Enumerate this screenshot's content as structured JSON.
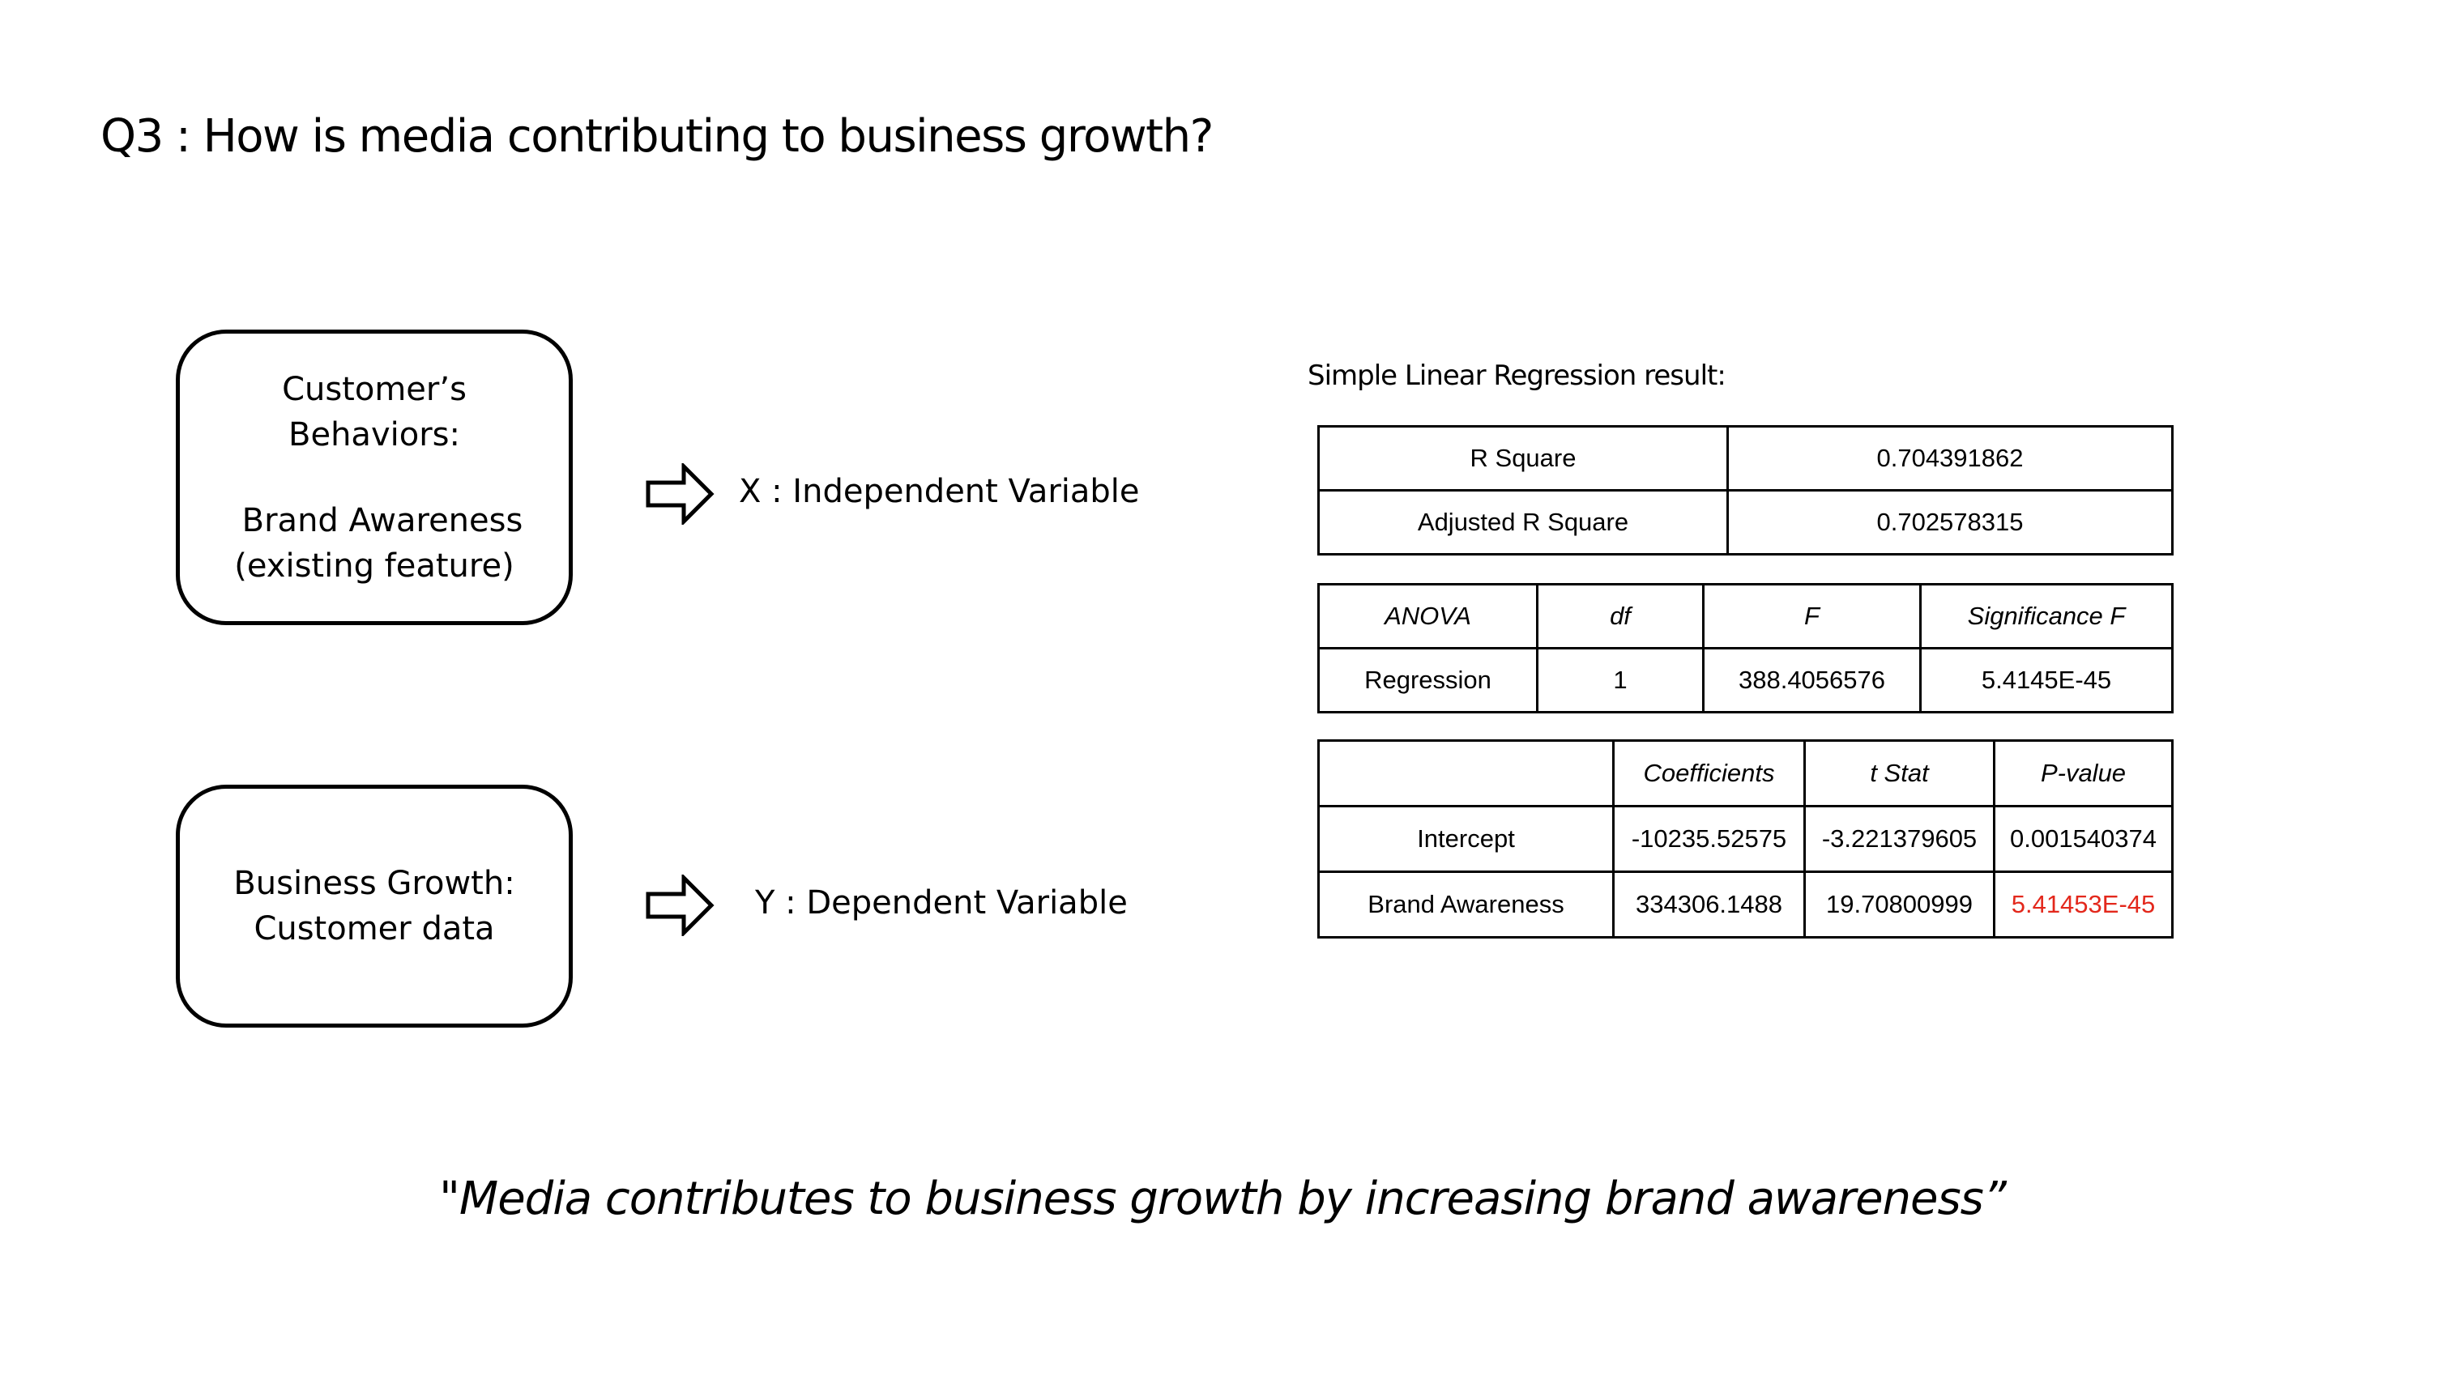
{
  "title": "Q3 : How is media contributing to business growth?",
  "boxes": {
    "x": {
      "line1": "Customer’s",
      "line2": "Behaviors:",
      "line3": "Brand Awareness",
      "line4": "(existing feature)"
    },
    "y": {
      "line1": "Business Growth:",
      "line2": "Customer data"
    }
  },
  "labels": {
    "x": "X : Independent Variable",
    "y": "Y : Dependent Variable"
  },
  "regression": {
    "title": "Simple Linear Regression result:",
    "summary": {
      "rows": [
        {
          "label": "R Square",
          "value": "0.704391862"
        },
        {
          "label": "Adjusted R Square",
          "value": "0.702578315"
        }
      ]
    },
    "anova": {
      "headers": [
        "ANOVA",
        "df",
        "F",
        "Significance F"
      ],
      "row": [
        "Regression",
        "1",
        "388.4056576",
        "5.4145E-45"
      ]
    },
    "coefficients": {
      "headers": [
        "",
        "Coefficients",
        "t Stat",
        "P-value"
      ],
      "rows": [
        [
          "Intercept",
          "-10235.52575",
          "-3.221379605",
          "0.001540374"
        ],
        [
          "Brand Awareness",
          "334306.1488",
          "19.70800999",
          "5.41453E-45"
        ]
      ],
      "highlight_color": "#e3281c"
    }
  },
  "conclusion": "\"Media contributes to business growth by increasing brand awareness”"
}
